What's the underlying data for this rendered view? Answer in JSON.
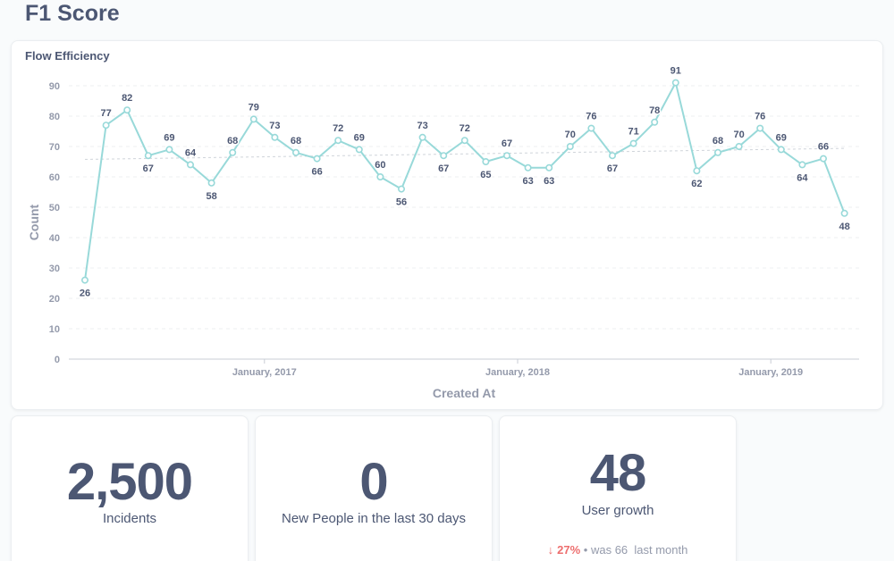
{
  "page": {
    "title": "F1 Score"
  },
  "chart_card": {
    "title": "Flow Efficiency"
  },
  "chart_data": {
    "type": "line",
    "title": "Flow Efficiency",
    "xlabel": "Created At",
    "ylabel": "Count",
    "ylim": [
      0,
      90
    ],
    "yticks": [
      0,
      10,
      20,
      30,
      40,
      50,
      60,
      70,
      80,
      90
    ],
    "xtick_labels": [
      "January, 2017",
      "January, 2018",
      "January, 2019"
    ],
    "grid": true,
    "trendline": true,
    "series": [
      {
        "color": "#98d9d9",
        "values": [
          26,
          77,
          82,
          67,
          69,
          64,
          58,
          68,
          79,
          73,
          68,
          66,
          72,
          69,
          60,
          56,
          73,
          67,
          72,
          65,
          67,
          63,
          63,
          70,
          76,
          67,
          71,
          78,
          91,
          62,
          68,
          70,
          76,
          69,
          64,
          66,
          48
        ]
      }
    ]
  },
  "kpis": [
    {
      "value": "2,500",
      "label": "Incidents"
    },
    {
      "value": "0",
      "label": "New People in the last 30 days"
    },
    {
      "value": "48",
      "label": "User growth",
      "compare": {
        "arrow": "↓",
        "delta": "27%",
        "sep": "•",
        "text": "was 66  last month"
      }
    }
  ],
  "colors": {
    "line": "#98d9d9",
    "text": "#4c5773",
    "axis": "#949aab",
    "down": "#ed6e6e"
  }
}
